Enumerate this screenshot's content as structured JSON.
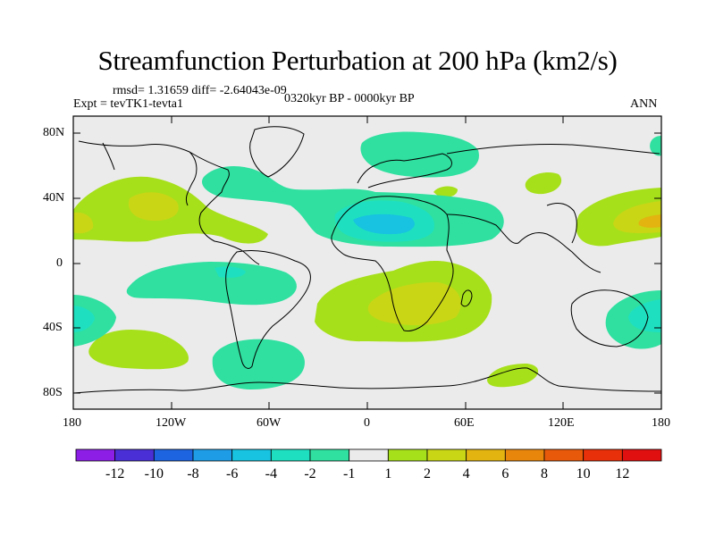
{
  "header": {
    "title": "Streamfunction Perturbation at 200 hPa (km2/s)",
    "stats": "rmsd= 1.31659 diff= -2.64043e-09",
    "experiment": "Expt = tevTK1-tevta1",
    "period": "0320kyr BP - 0000kyr BP",
    "season": "ANN"
  },
  "axes": {
    "lat_labels": [
      "80N",
      "40N",
      "0",
      "40S",
      "80S"
    ],
    "lon_labels": [
      "180",
      "120W",
      "60W",
      "0",
      "60E",
      "120E",
      "180"
    ]
  },
  "colorbar": {
    "labels": [
      "-12",
      "-10",
      "-8",
      "-6",
      "-4",
      "-2",
      "-1",
      "1",
      "2",
      "4",
      "6",
      "8",
      "10",
      "12"
    ],
    "colors": [
      "#8c1ee6",
      "#4a2fd6",
      "#1d64e0",
      "#1f9ce6",
      "#17c3e0",
      "#1ee0c0",
      "#2fe0a0",
      "#ebebeb",
      "#a6e01a",
      "#c9d616",
      "#e3b310",
      "#e8860c",
      "#e85a0a",
      "#e8300a",
      "#e01010"
    ]
  },
  "map_fill": {
    "background": "#ebebeb",
    "pos1": "#a6e01a",
    "pos2": "#c9d616",
    "pos4": "#e3b310",
    "neg1": "#2fe0a0",
    "neg2": "#1ee0c0",
    "neg4": "#17c3e0"
  }
}
